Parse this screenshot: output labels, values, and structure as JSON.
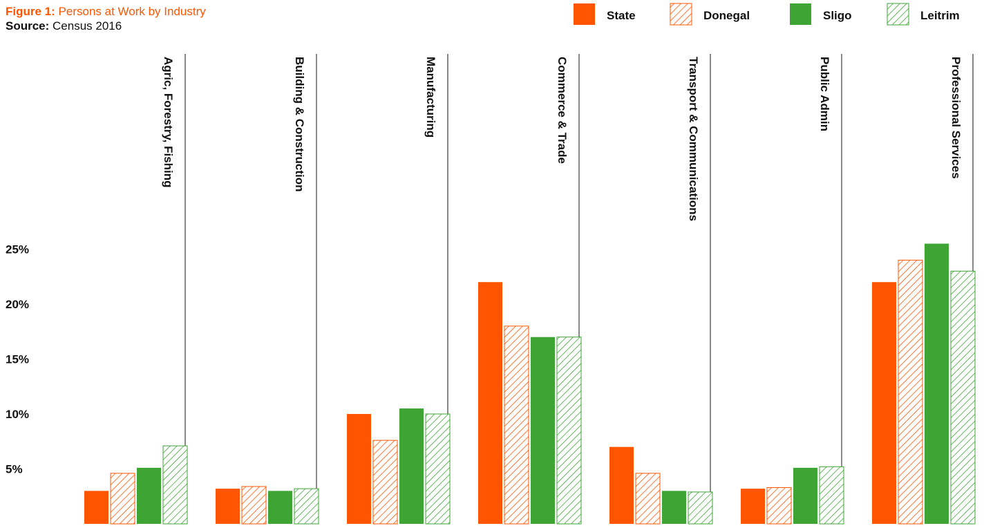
{
  "header": {
    "figure_label": "Figure 1:",
    "figure_title": "Persons at Work by Industry",
    "source_label": "Source:",
    "source_text": "Census 2016"
  },
  "colors": {
    "orange": "#ff5500",
    "green": "#3ea535",
    "divider": "#111111"
  },
  "chart_data": {
    "type": "bar",
    "title": "Persons at Work by Industry",
    "xlabel": "",
    "ylabel": "",
    "ylim": [
      0,
      30
    ],
    "yticks": [
      5,
      10,
      15,
      20,
      25
    ],
    "ytick_labels": [
      "5%",
      "10%",
      "15%",
      "20%",
      "25%"
    ],
    "grid": false,
    "legend_position": "top-right",
    "categories": [
      "Agric, Forestry, Fishing",
      "Building & Construction",
      "Manufacturing",
      "Commerce & Trade",
      "Transport & Communications",
      "Public Admin",
      "Professional Services"
    ],
    "series": [
      {
        "name": "State",
        "color": "#ff5500",
        "pattern": "solid",
        "values": [
          3.0,
          3.2,
          10.0,
          22.0,
          7.0,
          3.2,
          22.0
        ]
      },
      {
        "name": "Donegal",
        "color": "#ff5500",
        "pattern": "hatched",
        "values": [
          4.6,
          3.4,
          7.6,
          18.0,
          4.6,
          3.3,
          24.0
        ]
      },
      {
        "name": "Sligo",
        "color": "#3ea535",
        "pattern": "solid",
        "values": [
          5.1,
          3.0,
          10.5,
          17.0,
          3.0,
          5.1,
          25.5
        ]
      },
      {
        "name": "Leitrim",
        "color": "#3ea535",
        "pattern": "hatched",
        "values": [
          7.1,
          3.2,
          10.0,
          17.0,
          2.9,
          5.2,
          23.0
        ]
      }
    ]
  }
}
